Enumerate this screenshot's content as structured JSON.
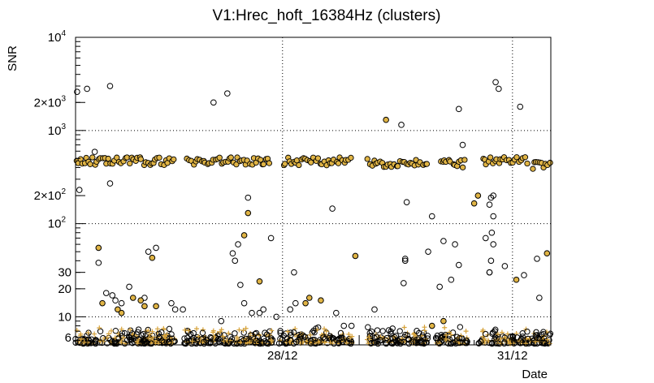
{
  "chart_data": {
    "type": "scatter",
    "title": "V1:Hrec_hoft_16384Hz (clusters)",
    "xlabel": "Date",
    "ylabel": "SNR",
    "y_scale": "log",
    "ylim": [
      5,
      10000
    ],
    "xlim": [
      25.3,
      31.5
    ],
    "x_unit": "day (December)",
    "grid": "dotted",
    "x_ticks": [
      {
        "value": 28.0,
        "label": "28/12"
      },
      {
        "value": 31.0,
        "label": "31/12"
      }
    ],
    "y_ticks": [
      {
        "value": 6,
        "label": "6"
      },
      {
        "value": 10,
        "label": "10"
      },
      {
        "value": 20,
        "label": "20"
      },
      {
        "value": 30,
        "label": "30"
      },
      {
        "value": 100,
        "label": "10",
        "exp": "2"
      },
      {
        "value": 200,
        "label": "2×10",
        "exp": "2"
      },
      {
        "value": 1000,
        "label": "10",
        "exp": "3"
      },
      {
        "value": 2000,
        "label": "2×10",
        "exp": "3"
      },
      {
        "value": 10000,
        "label": "10",
        "exp": "4"
      }
    ],
    "gridlines_y": [
      10,
      100,
      1000
    ],
    "gridlines_x": [
      28.0,
      31.0
    ],
    "series": [
      {
        "marker": "open-circle",
        "color": "#000000",
        "points": [
          [
            25.32,
            2600
          ],
          [
            25.45,
            2800
          ],
          [
            25.35,
            230
          ],
          [
            25.75,
            3000
          ],
          [
            25.75,
            270
          ],
          [
            25.55,
            590
          ],
          [
            25.6,
            38
          ],
          [
            25.7,
            18
          ],
          [
            25.78,
            17
          ],
          [
            25.82,
            15
          ],
          [
            25.9,
            14
          ],
          [
            26.0,
            21
          ],
          [
            26.2,
            16
          ],
          [
            26.25,
            50
          ],
          [
            26.35,
            55
          ],
          [
            26.55,
            14
          ],
          [
            26.6,
            12
          ],
          [
            26.7,
            12
          ],
          [
            27.1,
            2000
          ],
          [
            27.2,
            9
          ],
          [
            27.28,
            2500
          ],
          [
            27.35,
            48
          ],
          [
            27.38,
            40
          ],
          [
            27.42,
            60
          ],
          [
            27.45,
            22
          ],
          [
            27.55,
            190
          ],
          [
            27.5,
            14
          ],
          [
            27.6,
            11
          ],
          [
            27.7,
            11
          ],
          [
            27.75,
            12
          ],
          [
            27.85,
            70
          ],
          [
            27.92,
            10
          ],
          [
            28.1,
            12
          ],
          [
            28.15,
            30
          ],
          [
            28.17,
            14
          ],
          [
            28.65,
            145
          ],
          [
            28.7,
            11
          ],
          [
            28.8,
            8
          ],
          [
            28.9,
            8
          ],
          [
            29.2,
            12
          ],
          [
            29.55,
            1150
          ],
          [
            29.6,
            40
          ],
          [
            29.6,
            42
          ],
          [
            29.62,
            170
          ],
          [
            29.58,
            23
          ],
          [
            29.95,
            120
          ],
          [
            29.9,
            50
          ],
          [
            30.05,
            21
          ],
          [
            30.1,
            65
          ],
          [
            30.2,
            25
          ],
          [
            30.3,
            1700
          ],
          [
            30.35,
            700
          ],
          [
            30.3,
            36
          ],
          [
            30.25,
            60
          ],
          [
            30.7,
            30
          ],
          [
            30.65,
            70
          ],
          [
            30.7,
            160
          ],
          [
            30.72,
            190
          ],
          [
            30.75,
            200
          ],
          [
            30.78,
            3300
          ],
          [
            30.82,
            2800
          ],
          [
            30.75,
            120
          ],
          [
            30.73,
            80
          ],
          [
            30.75,
            60
          ],
          [
            30.72,
            40
          ],
          [
            30.7,
            30
          ],
          [
            30.9,
            35
          ],
          [
            31.1,
            1800
          ],
          [
            31.15,
            28
          ],
          [
            31.2,
            5.8
          ],
          [
            31.32,
            42
          ],
          [
            31.35,
            16
          ]
        ]
      },
      {
        "marker": "filled-circle",
        "color": "#e0b445",
        "points": [
          [
            25.6,
            55
          ],
          [
            25.65,
            14
          ],
          [
            25.85,
            12
          ],
          [
            25.9,
            11
          ],
          [
            26.05,
            16
          ],
          [
            26.15,
            15
          ],
          [
            26.2,
            13
          ],
          [
            26.3,
            43
          ],
          [
            26.35,
            13
          ],
          [
            27.55,
            130
          ],
          [
            27.5,
            75
          ],
          [
            27.7,
            24
          ],
          [
            28.3,
            14
          ],
          [
            28.35,
            16
          ],
          [
            28.5,
            15
          ],
          [
            28.95,
            45
          ],
          [
            29.35,
            1300
          ],
          [
            29.95,
            8
          ],
          [
            30.1,
            9
          ],
          [
            30.5,
            165
          ],
          [
            30.55,
            200
          ],
          [
            31.05,
            25
          ],
          [
            31.45,
            48
          ]
        ]
      }
    ],
    "plateau_bands": [
      {
        "x_from": 25.3,
        "x_to": 26.6,
        "snr": 470
      },
      {
        "x_from": 26.75,
        "x_to": 27.85,
        "snr": 470
      },
      {
        "x_from": 28.0,
        "x_to": 28.9,
        "snr": 470
      },
      {
        "x_from": 29.1,
        "x_to": 29.9,
        "snr": 450
      },
      {
        "x_from": 30.05,
        "x_to": 30.4,
        "snr": 440
      },
      {
        "x_from": 30.6,
        "x_to": 31.2,
        "snr": 470
      },
      {
        "x_from": 31.25,
        "x_to": 31.5,
        "snr": 420
      }
    ],
    "baseline_segments": [
      {
        "x_from": 25.3,
        "x_to": 26.6
      },
      {
        "x_from": 26.72,
        "x_to": 27.88
      },
      {
        "x_from": 27.95,
        "x_to": 28.92
      },
      {
        "x_from": 29.1,
        "x_to": 29.9
      },
      {
        "x_from": 30.0,
        "x_to": 30.42
      },
      {
        "x_from": 30.55,
        "x_to": 31.5
      }
    ]
  }
}
